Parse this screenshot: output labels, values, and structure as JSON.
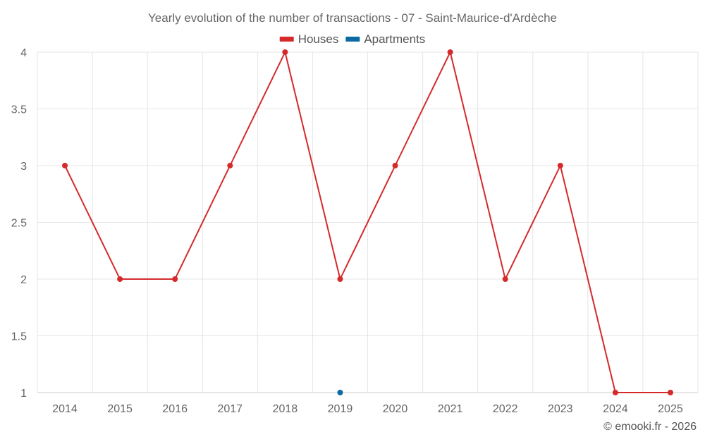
{
  "chart_data": {
    "type": "line",
    "title": "Yearly evolution of the number of transactions - 07 - Saint-Maurice-d'Ardèche",
    "x": [
      "2014",
      "2015",
      "2016",
      "2017",
      "2018",
      "2019",
      "2020",
      "2021",
      "2022",
      "2023",
      "2024",
      "2025"
    ],
    "series": [
      {
        "name": "Houses",
        "color": "#d42a2a",
        "values": [
          3,
          2,
          2,
          3,
          4,
          2,
          3,
          4,
          2,
          3,
          1,
          1
        ]
      },
      {
        "name": "Apartments",
        "color": "#0a6aa1",
        "values": [
          null,
          null,
          null,
          null,
          null,
          1,
          null,
          null,
          null,
          null,
          null,
          null
        ]
      }
    ],
    "yticks": [
      "1",
      "1.5",
      "2",
      "2.5",
      "3",
      "3.5",
      "4"
    ],
    "ylim": [
      1,
      4
    ],
    "grid": true,
    "legend_position": "top-center"
  },
  "credit": "© emooki.fr - 2026"
}
